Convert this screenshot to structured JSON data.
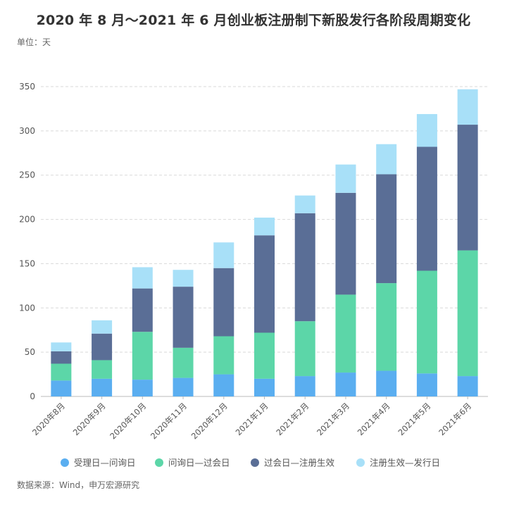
{
  "title": "2020 年 8 月～2021 年 6 月创业板注册制下新股发行各阶段周期变化",
  "unit_label": "单位：天",
  "source": "数据来源：Wind，申万宏源研究",
  "chart_data": {
    "type": "bar",
    "stacked": true,
    "categories": [
      "2020年8月",
      "2020年9月",
      "2020年10月",
      "2020年11月",
      "2020年12月",
      "2021年1月",
      "2021年2月",
      "2021年3月",
      "2021年4月",
      "2021年5月",
      "2021年6月"
    ],
    "series": [
      {
        "name": "受理日—问询日",
        "color": "#5aaef0",
        "values": [
          18,
          20,
          19,
          21,
          25,
          20,
          23,
          27,
          29,
          26,
          23
        ]
      },
      {
        "name": "问询日—过会日",
        "color": "#5cd6a8",
        "values": [
          19,
          21,
          54,
          34,
          43,
          52,
          62,
          88,
          99,
          116,
          142
        ]
      },
      {
        "name": "过会日—注册生效",
        "color": "#5a6e96",
        "values": [
          14,
          30,
          49,
          69,
          77,
          110,
          122,
          115,
          123,
          140,
          142
        ]
      },
      {
        "name": "注册生效—发行日",
        "color": "#a8e0f8",
        "values": [
          10,
          15,
          24,
          19,
          29,
          20,
          20,
          32,
          34,
          37,
          40
        ]
      }
    ],
    "yticks": [
      0,
      50,
      100,
      150,
      200,
      250,
      300,
      350
    ],
    "ylim": [
      0,
      350
    ],
    "grid": true,
    "legend_position": "bottom"
  }
}
